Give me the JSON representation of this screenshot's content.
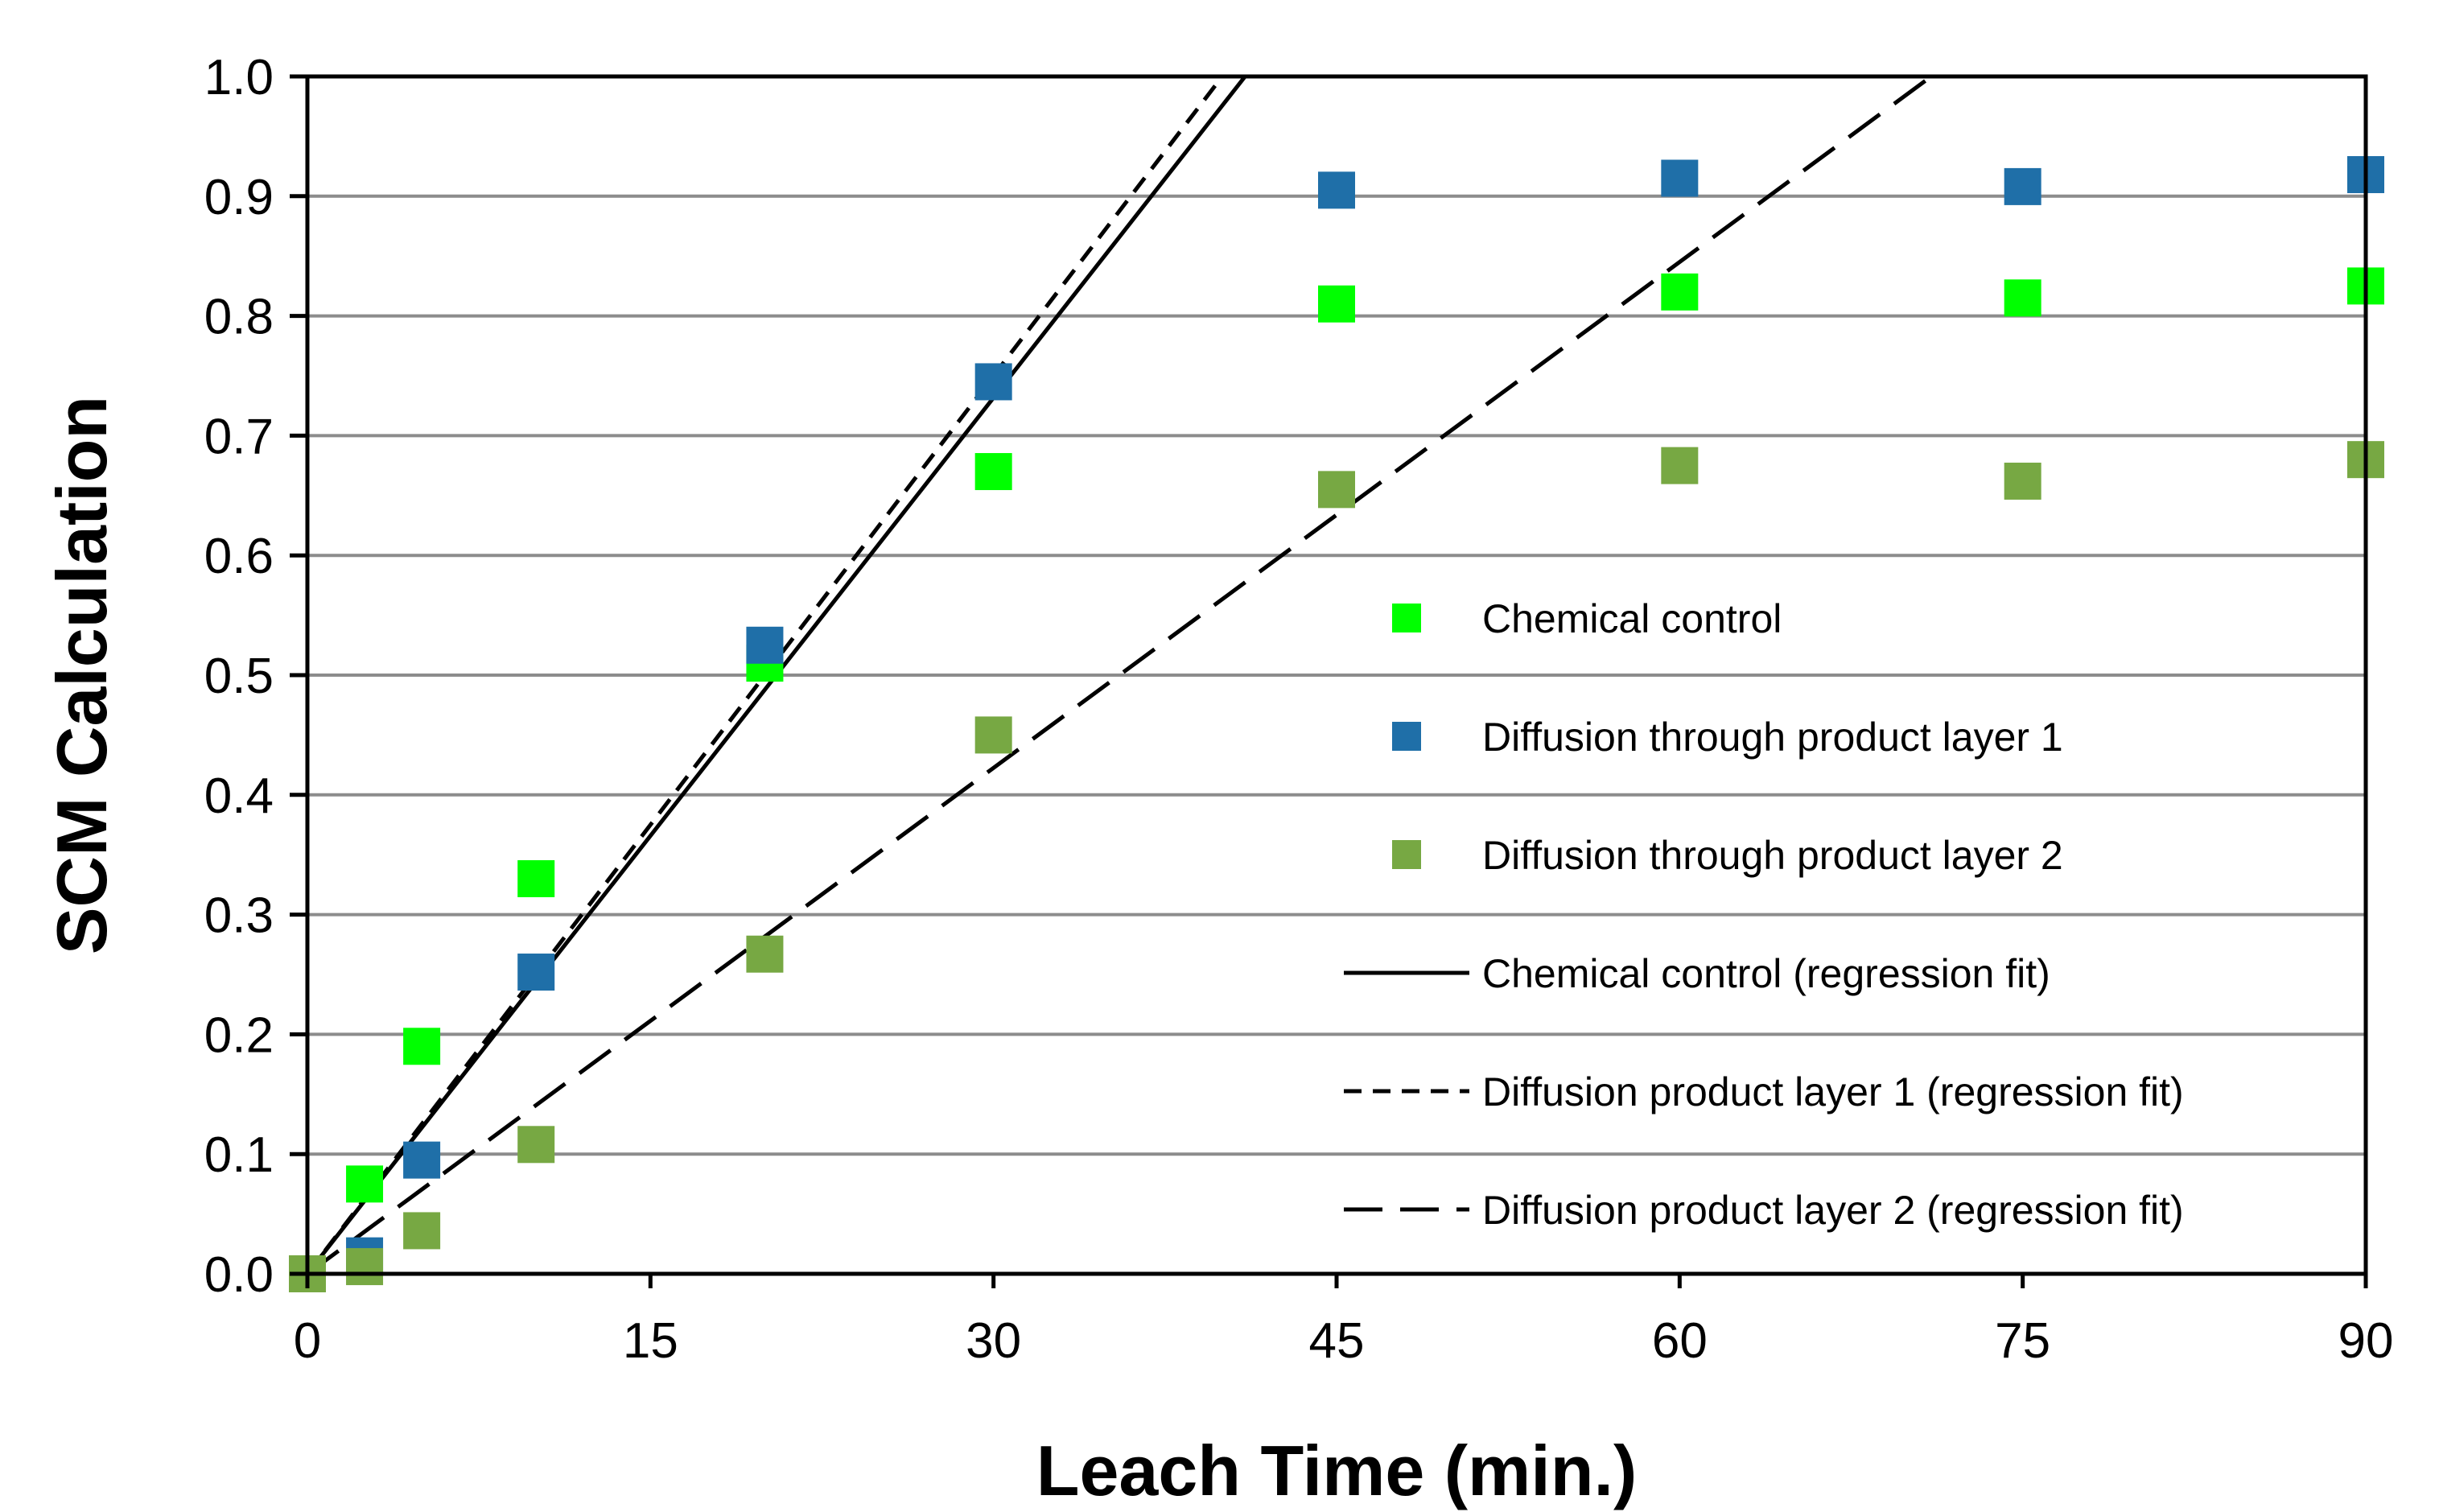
{
  "chart_data": {
    "type": "scatter",
    "xlabel": "Leach Time (min.)",
    "ylabel": "SCM Calculation",
    "xlim": [
      0,
      90
    ],
    "ylim": [
      0,
      1.0
    ],
    "x_ticks": [
      "0",
      "15",
      "30",
      "45",
      "60",
      "75",
      "90"
    ],
    "x_tick_values": [
      0,
      15,
      30,
      45,
      60,
      75,
      90
    ],
    "y_ticks": [
      "0.0",
      "0.1",
      "0.2",
      "0.3",
      "0.4",
      "0.5",
      "0.6",
      "0.7",
      "0.8",
      "0.9",
      "1.0"
    ],
    "y_tick_values": [
      0,
      0.1,
      0.2,
      0.3,
      0.4,
      0.5,
      0.6,
      0.7,
      0.8,
      0.9,
      1.0
    ],
    "grid": "horizontal",
    "legend_position": "right",
    "series": [
      {
        "name": "Chemical control",
        "kind": "marker",
        "color": "#00ff00",
        "x": [
          0,
          2.5,
          5,
          10,
          20,
          30,
          45,
          60,
          75,
          90
        ],
        "y": [
          0.0,
          0.075,
          0.19,
          0.33,
          0.51,
          0.67,
          0.81,
          0.82,
          0.815,
          0.825
        ]
      },
      {
        "name": "Diffusion through product layer 1",
        "kind": "marker",
        "color": "#1f6fa8",
        "x": [
          0,
          2.5,
          5,
          10,
          20,
          30,
          45,
          60,
          75,
          90
        ],
        "y": [
          0.0,
          0.015,
          0.095,
          0.252,
          0.525,
          0.745,
          0.905,
          0.915,
          0.908,
          0.918
        ]
      },
      {
        "name": "Diffusion through product layer 2",
        "kind": "marker",
        "color": "#77a843",
        "x": [
          0,
          2.5,
          5,
          10,
          20,
          30,
          45,
          60,
          75,
          90
        ],
        "y": [
          0.0,
          0.006,
          0.036,
          0.108,
          0.267,
          0.45,
          0.655,
          0.675,
          0.662,
          0.68
        ]
      },
      {
        "name": "Chemical control (regression fit)",
        "kind": "line",
        "dash": "solid",
        "color": "#000000",
        "x": [
          0,
          41
        ],
        "y": [
          0,
          1.0
        ]
      },
      {
        "name": "Diffusion product layer 1 (regression fit)",
        "kind": "line",
        "dash": "short",
        "color": "#000000",
        "x": [
          0,
          40
        ],
        "y": [
          0,
          1.0
        ]
      },
      {
        "name": "Diffusion product layer 2 (regression fit)",
        "kind": "line",
        "dash": "long",
        "color": "#000000",
        "x": [
          0,
          71
        ],
        "y": [
          0,
          1.0
        ]
      }
    ]
  }
}
